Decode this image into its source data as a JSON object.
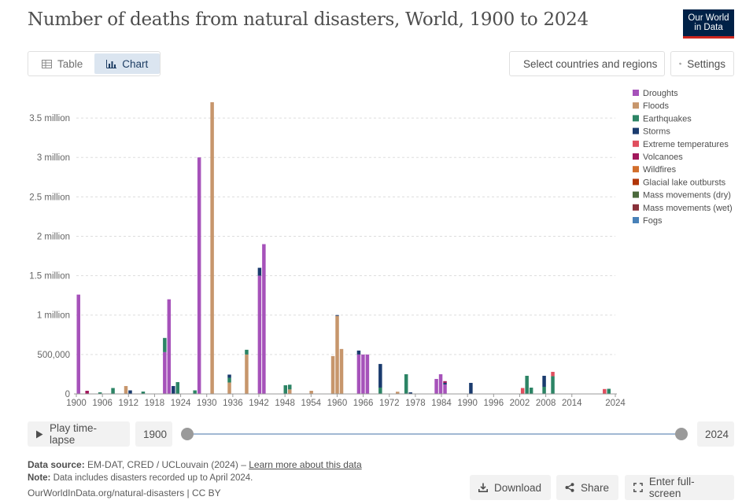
{
  "header": {
    "title": "Number of deaths from natural disasters, World, 1900 to 2024",
    "logo_line1": "Our World",
    "logo_line2": "in Data"
  },
  "tabs": [
    {
      "label": "Table",
      "icon": "table-icon"
    },
    {
      "label": "Chart",
      "icon": "chart-icon"
    }
  ],
  "toolbar": {
    "select_label": "Select countries and regions",
    "settings_label": "Settings"
  },
  "timeline": {
    "play_label": "Play time-lapse",
    "start_year": "1900",
    "end_year": "2024"
  },
  "footer": {
    "source_label": "Data source:",
    "source_text": "EM-DAT, CRED / UCLouvain (2024) –",
    "source_link": "Learn more about this data",
    "note_label": "Note:",
    "note_text": "Data includes disasters recorded up to April 2024.",
    "url_text": "OurWorldInData.org/natural-disasters | CC BY",
    "download_label": "Download",
    "share_label": "Share",
    "fullscreen_label": "Enter full-screen"
  },
  "chart_data": {
    "type": "bar",
    "stacked": true,
    "title": "Number of deaths from natural disasters, World, 1900 to 2024",
    "ylim": [
      0,
      3800000
    ],
    "y_ticks": [
      0,
      500000,
      1000000,
      1500000,
      2000000,
      2500000,
      3000000,
      3500000
    ],
    "y_tick_labels": [
      "0",
      "500,000",
      "1 million",
      "1.5 million",
      "2 million",
      "2.5 million",
      "3 million",
      "3.5 million"
    ],
    "x_range": [
      1900,
      2024
    ],
    "x_ticks": [
      1900,
      1906,
      1912,
      1918,
      1924,
      1930,
      1936,
      1942,
      1948,
      1954,
      1960,
      1966,
      1972,
      1978,
      1984,
      1990,
      1996,
      2002,
      2008,
      2014,
      2024
    ],
    "legend_position": "right",
    "series": [
      {
        "name": "Droughts",
        "color": "#a652ba",
        "values": {
          "1900": 1260000,
          "1901": 0,
          "1902": 0,
          "1903": 0,
          "1904": 0,
          "1905": 0,
          "1906": 0,
          "1907": 0,
          "1908": 0,
          "1909": 0,
          "1910": 0,
          "1911": 0,
          "1912": 0,
          "1913": 0,
          "1914": 0,
          "1915": 0,
          "1916": 0,
          "1917": 0,
          "1918": 0,
          "1919": 0,
          "1920": 530000,
          "1921": 1200000,
          "1922": 0,
          "1923": 0,
          "1924": 0,
          "1925": 0,
          "1926": 0,
          "1927": 0,
          "1928": 3000000,
          "1929": 0,
          "1930": 0,
          "1931": 0,
          "1932": 0,
          "1933": 0,
          "1934": 0,
          "1935": 0,
          "1936": 0,
          "1937": 0,
          "1938": 0,
          "1939": 0,
          "1940": 0,
          "1941": 0,
          "1942": 1500000,
          "1943": 1900000,
          "1944": 0,
          "1945": 0,
          "1946": 0,
          "1947": 0,
          "1948": 0,
          "1949": 0,
          "1950": 0,
          "1951": 0,
          "1952": 0,
          "1953": 0,
          "1954": 0,
          "1955": 0,
          "1956": 0,
          "1957": 0,
          "1958": 0,
          "1959": 0,
          "1960": 0,
          "1961": 0,
          "1962": 0,
          "1963": 0,
          "1964": 0,
          "1965": 500000,
          "1966": 500000,
          "1967": 500000,
          "1968": 0,
          "1969": 0,
          "1970": 0,
          "1971": 0,
          "1972": 0,
          "1973": 0,
          "1974": 0,
          "1975": 0,
          "1976": 0,
          "1977": 0,
          "1978": 0,
          "1979": 0,
          "1980": 0,
          "1981": 0,
          "1982": 0,
          "1983": 190000,
          "1984": 250000,
          "1985": 120000,
          "1986": 0,
          "1987": 0,
          "1988": 0,
          "1989": 0,
          "1990": 0,
          "1991": 0,
          "1992": 0,
          "1993": 0,
          "1994": 0,
          "1995": 0,
          "1996": 0,
          "1997": 0,
          "1998": 0,
          "1999": 0,
          "2000": 0,
          "2001": 0,
          "2002": 0,
          "2003": 0,
          "2004": 0,
          "2005": 0,
          "2006": 0,
          "2007": 0,
          "2008": 0,
          "2009": 0,
          "2010": 0,
          "2011": 0,
          "2012": 0,
          "2013": 0,
          "2014": 0,
          "2015": 0,
          "2016": 0,
          "2017": 0,
          "2018": 0,
          "2019": 0,
          "2020": 0,
          "2021": 0,
          "2022": 0,
          "2023": 0,
          "2024": 0
        }
      },
      {
        "name": "Floods",
        "color": "#c7966c",
        "values": {
          "1900": 0,
          "1901": 0,
          "1902": 0,
          "1903": 0,
          "1904": 0,
          "1905": 0,
          "1906": 0,
          "1907": 0,
          "1908": 0,
          "1909": 0,
          "1910": 0,
          "1911": 100000,
          "1912": 0,
          "1913": 0,
          "1914": 0,
          "1915": 0,
          "1916": 0,
          "1917": 0,
          "1918": 0,
          "1919": 0,
          "1920": 0,
          "1921": 0,
          "1922": 0,
          "1923": 0,
          "1924": 0,
          "1925": 0,
          "1926": 0,
          "1927": 0,
          "1928": 0,
          "1929": 0,
          "1930": 0,
          "1931": 3700000,
          "1932": 0,
          "1933": 0,
          "1934": 0,
          "1935": 145000,
          "1936": 0,
          "1937": 0,
          "1938": 0,
          "1939": 500000,
          "1940": 0,
          "1941": 0,
          "1942": 0,
          "1943": 0,
          "1944": 0,
          "1945": 0,
          "1946": 0,
          "1947": 0,
          "1948": 0,
          "1949": 57000,
          "1950": 0,
          "1951": 0,
          "1952": 0,
          "1953": 0,
          "1954": 40000,
          "1955": 0,
          "1956": 0,
          "1957": 0,
          "1958": 0,
          "1959": 480000,
          "1960": 990000,
          "1961": 570000,
          "1962": 0,
          "1963": 0,
          "1964": 0,
          "1965": 0,
          "1966": 0,
          "1967": 0,
          "1968": 0,
          "1969": 0,
          "1970": 0,
          "1971": 0,
          "1972": 0,
          "1973": 0,
          "1974": 28000,
          "1975": 0,
          "1976": 0,
          "1977": 0,
          "1978": 0,
          "1979": 0,
          "1980": 0,
          "1981": 0,
          "1982": 0,
          "1983": 0,
          "1984": 0,
          "1985": 0,
          "1986": 0,
          "1987": 0,
          "1988": 0,
          "1989": 0,
          "1990": 0,
          "1991": 0,
          "1992": 0,
          "1993": 0,
          "1994": 0,
          "1995": 0,
          "1996": 0,
          "1997": 0,
          "1998": 0,
          "1999": 0,
          "2000": 0,
          "2001": 0,
          "2002": 0,
          "2003": 0,
          "2004": 0,
          "2005": 0,
          "2006": 0,
          "2007": 0,
          "2008": 0,
          "2009": 0,
          "2010": 0,
          "2011": 0,
          "2012": 0,
          "2013": 0,
          "2014": 0,
          "2015": 0,
          "2016": 0,
          "2017": 0,
          "2018": 0,
          "2019": 0,
          "2020": 0,
          "2021": 0,
          "2022": 0,
          "2023": 0,
          "2024": 0
        }
      },
      {
        "name": "Earthquakes",
        "color": "#2c8465",
        "values": {
          "1900": 0,
          "1901": 0,
          "1902": 0,
          "1903": 0,
          "1904": 0,
          "1905": 20000,
          "1906": 0,
          "1907": 0,
          "1908": 75000,
          "1909": 0,
          "1910": 0,
          "1911": 0,
          "1912": 0,
          "1913": 0,
          "1914": 0,
          "1915": 30000,
          "1916": 0,
          "1917": 0,
          "1918": 0,
          "1919": 0,
          "1920": 180000,
          "1921": 0,
          "1922": 0,
          "1923": 150000,
          "1924": 0,
          "1925": 0,
          "1926": 0,
          "1927": 45000,
          "1928": 0,
          "1929": 0,
          "1930": 0,
          "1931": 0,
          "1932": 0,
          "1933": 0,
          "1934": 0,
          "1935": 60000,
          "1936": 0,
          "1937": 0,
          "1938": 0,
          "1939": 60000,
          "1940": 0,
          "1941": 0,
          "1942": 0,
          "1943": 0,
          "1944": 0,
          "1945": 0,
          "1946": 0,
          "1947": 0,
          "1948": 110000,
          "1949": 60000,
          "1950": 0,
          "1951": 0,
          "1952": 0,
          "1953": 0,
          "1954": 0,
          "1955": 0,
          "1956": 0,
          "1957": 0,
          "1958": 0,
          "1959": 0,
          "1960": 0,
          "1961": 0,
          "1962": 0,
          "1963": 0,
          "1964": 0,
          "1965": 0,
          "1966": 0,
          "1967": 0,
          "1968": 0,
          "1969": 0,
          "1970": 80000,
          "1971": 0,
          "1972": 0,
          "1973": 0,
          "1974": 0,
          "1975": 0,
          "1976": 250000,
          "1977": 0,
          "1978": 0,
          "1979": 0,
          "1980": 0,
          "1981": 0,
          "1982": 0,
          "1983": 0,
          "1984": 0,
          "1985": 0,
          "1986": 0,
          "1987": 0,
          "1988": 0,
          "1989": 0,
          "1990": 0,
          "1991": 0,
          "1992": 0,
          "1993": 0,
          "1994": 0,
          "1995": 0,
          "1996": 0,
          "1997": 0,
          "1998": 0,
          "1999": 0,
          "2000": 0,
          "2001": 0,
          "2002": 0,
          "2003": 0,
          "2004": 230000,
          "2005": 80000,
          "2006": 0,
          "2007": 0,
          "2008": 90000,
          "2009": 0,
          "2010": 225000,
          "2011": 0,
          "2012": 0,
          "2013": 0,
          "2014": 0,
          "2015": 0,
          "2016": 0,
          "2017": 0,
          "2018": 0,
          "2019": 0,
          "2020": 0,
          "2021": 0,
          "2022": 0,
          "2023": 65000,
          "2024": 0
        }
      },
      {
        "name": "Storms",
        "color": "#1a3b6e",
        "values": {
          "1900": 0,
          "1901": 0,
          "1902": 0,
          "1903": 0,
          "1904": 0,
          "1905": 0,
          "1906": 0,
          "1907": 0,
          "1908": 0,
          "1909": 0,
          "1910": 0,
          "1911": 0,
          "1912": 45000,
          "1913": 0,
          "1914": 0,
          "1915": 0,
          "1916": 0,
          "1917": 0,
          "1918": 0,
          "1919": 0,
          "1920": 0,
          "1921": 0,
          "1922": 100000,
          "1923": 0,
          "1924": 0,
          "1925": 0,
          "1926": 0,
          "1927": 0,
          "1928": 0,
          "1929": 0,
          "1930": 0,
          "1931": 0,
          "1932": 0,
          "1933": 0,
          "1934": 0,
          "1935": 40000,
          "1936": 0,
          "1937": 0,
          "1938": 0,
          "1939": 0,
          "1940": 0,
          "1941": 0,
          "1942": 100000,
          "1943": 0,
          "1944": 0,
          "1945": 0,
          "1946": 0,
          "1947": 0,
          "1948": 0,
          "1949": 0,
          "1950": 0,
          "1951": 0,
          "1952": 0,
          "1953": 0,
          "1954": 0,
          "1955": 0,
          "1956": 0,
          "1957": 0,
          "1958": 0,
          "1959": 0,
          "1960": 10000,
          "1961": 0,
          "1962": 0,
          "1963": 0,
          "1964": 0,
          "1965": 50000,
          "1966": 0,
          "1967": 0,
          "1968": 0,
          "1969": 0,
          "1970": 300000,
          "1971": 0,
          "1972": 0,
          "1973": 0,
          "1974": 0,
          "1975": 0,
          "1976": 0,
          "1977": 20000,
          "1978": 0,
          "1979": 0,
          "1980": 0,
          "1981": 0,
          "1982": 0,
          "1983": 0,
          "1984": 0,
          "1985": 20000,
          "1986": 0,
          "1987": 0,
          "1988": 0,
          "1989": 0,
          "1990": 0,
          "1991": 140000,
          "1992": 0,
          "1993": 0,
          "1994": 0,
          "1995": 0,
          "1996": 0,
          "1997": 0,
          "1998": 0,
          "1999": 0,
          "2000": 0,
          "2001": 0,
          "2002": 0,
          "2003": 0,
          "2004": 0,
          "2005": 0,
          "2006": 0,
          "2007": 0,
          "2008": 140000,
          "2009": 0,
          "2010": 0,
          "2011": 0,
          "2012": 0,
          "2013": 0,
          "2014": 0,
          "2015": 0,
          "2016": 0,
          "2017": 0,
          "2018": 0,
          "2019": 0,
          "2020": 0,
          "2021": 0,
          "2022": 0,
          "2023": 0,
          "2024": 0
        }
      },
      {
        "name": "Extreme temperatures",
        "color": "#e04e5e",
        "values": {
          "1900": 0,
          "1901": 0,
          "1902": 0,
          "1903": 0,
          "1904": 0,
          "1905": 0,
          "1906": 0,
          "1907": 0,
          "1908": 0,
          "1909": 0,
          "1910": 0,
          "1911": 0,
          "1912": 0,
          "1913": 0,
          "1914": 0,
          "1915": 0,
          "1916": 0,
          "1917": 0,
          "1918": 0,
          "1919": 0,
          "1920": 0,
          "1921": 0,
          "1922": 0,
          "1923": 0,
          "1924": 0,
          "1925": 0,
          "1926": 0,
          "1927": 0,
          "1928": 0,
          "1929": 0,
          "1930": 0,
          "1931": 0,
          "1932": 0,
          "1933": 0,
          "1934": 0,
          "1935": 0,
          "1936": 0,
          "1937": 0,
          "1938": 0,
          "1939": 0,
          "1940": 0,
          "1941": 0,
          "1942": 0,
          "1943": 0,
          "1944": 0,
          "1945": 0,
          "1946": 0,
          "1947": 0,
          "1948": 0,
          "1949": 0,
          "1950": 0,
          "1951": 0,
          "1952": 0,
          "1953": 0,
          "1954": 0,
          "1955": 0,
          "1956": 0,
          "1957": 0,
          "1958": 0,
          "1959": 0,
          "1960": 0,
          "1961": 0,
          "1962": 0,
          "1963": 0,
          "1964": 0,
          "1965": 0,
          "1966": 0,
          "1967": 0,
          "1968": 0,
          "1969": 0,
          "1970": 0,
          "1971": 0,
          "1972": 0,
          "1973": 0,
          "1974": 0,
          "1975": 0,
          "1976": 0,
          "1977": 0,
          "1978": 0,
          "1979": 0,
          "1980": 0,
          "1981": 0,
          "1982": 0,
          "1983": 0,
          "1984": 0,
          "1985": 0,
          "1986": 0,
          "1987": 0,
          "1988": 0,
          "1989": 0,
          "1990": 0,
          "1991": 0,
          "1992": 0,
          "1993": 0,
          "1994": 0,
          "1995": 0,
          "1996": 0,
          "1997": 0,
          "1998": 0,
          "1999": 0,
          "2000": 0,
          "2001": 0,
          "2002": 0,
          "2003": 75000,
          "2004": 0,
          "2005": 0,
          "2006": 0,
          "2007": 0,
          "2008": 0,
          "2009": 0,
          "2010": 55000,
          "2011": 0,
          "2012": 0,
          "2013": 0,
          "2014": 0,
          "2015": 0,
          "2016": 0,
          "2017": 0,
          "2018": 0,
          "2019": 0,
          "2020": 0,
          "2021": 0,
          "2022": 62000,
          "2023": 0,
          "2024": 0
        }
      },
      {
        "name": "Volcanoes",
        "color": "#a2185c",
        "values": {
          "1900": 0,
          "1901": 0,
          "1902": 40000,
          "1903": 0,
          "1904": 0,
          "1905": 0,
          "1906": 0,
          "1907": 0,
          "1908": 0,
          "1909": 0,
          "1910": 0,
          "1911": 0,
          "1912": 0,
          "1913": 0,
          "1914": 0,
          "1915": 0,
          "1916": 0,
          "1917": 0,
          "1918": 0,
          "1919": 0,
          "1920": 0,
          "1921": 0,
          "1922": 0,
          "1923": 0,
          "1924": 0,
          "1925": 0,
          "1926": 0,
          "1927": 0,
          "1928": 0,
          "1929": 0,
          "1930": 0,
          "1931": 0,
          "1932": 0,
          "1933": 0,
          "1934": 0,
          "1935": 0,
          "1936": 0,
          "1937": 0,
          "1938": 0,
          "1939": 0,
          "1940": 0,
          "1941": 0,
          "1942": 0,
          "1943": 0,
          "1944": 0,
          "1945": 0,
          "1946": 0,
          "1947": 0,
          "1948": 0,
          "1949": 0,
          "1950": 0,
          "1951": 0,
          "1952": 0,
          "1953": 0,
          "1954": 0,
          "1955": 0,
          "1956": 0,
          "1957": 0,
          "1958": 0,
          "1959": 0,
          "1960": 0,
          "1961": 0,
          "1962": 0,
          "1963": 0,
          "1964": 0,
          "1965": 0,
          "1966": 0,
          "1967": 0,
          "1968": 0,
          "1969": 0,
          "1970": 0,
          "1971": 0,
          "1972": 0,
          "1973": 0,
          "1974": 0,
          "1975": 0,
          "1976": 0,
          "1977": 0,
          "1978": 0,
          "1979": 0,
          "1980": 0,
          "1981": 0,
          "1982": 0,
          "1983": 0,
          "1984": 0,
          "1985": 22000,
          "1986": 0,
          "1987": 0,
          "1988": 0,
          "1989": 0,
          "1990": 0,
          "1991": 0,
          "1992": 0,
          "1993": 0,
          "1994": 0,
          "1995": 0,
          "1996": 0,
          "1997": 0,
          "1998": 0,
          "1999": 0,
          "2000": 0,
          "2001": 0,
          "2002": 0,
          "2003": 0,
          "2004": 0,
          "2005": 0,
          "2006": 0,
          "2007": 0,
          "2008": 0,
          "2009": 0,
          "2010": 0,
          "2011": 0,
          "2012": 0,
          "2013": 0,
          "2014": 0,
          "2015": 0,
          "2016": 0,
          "2017": 0,
          "2018": 0,
          "2019": 0,
          "2020": 0,
          "2021": 0,
          "2022": 0,
          "2023": 0,
          "2024": 0
        }
      },
      {
        "name": "Wildfires",
        "color": "#d26e2b",
        "values": {}
      },
      {
        "name": "Glacial lake outbursts",
        "color": "#b13507",
        "values": {}
      },
      {
        "name": "Mass movements (dry)",
        "color": "#4c6a3d",
        "values": {}
      },
      {
        "name": "Mass movements (wet)",
        "color": "#883039",
        "values": {}
      },
      {
        "name": "Fogs",
        "color": "#4881b8",
        "values": {}
      }
    ]
  }
}
